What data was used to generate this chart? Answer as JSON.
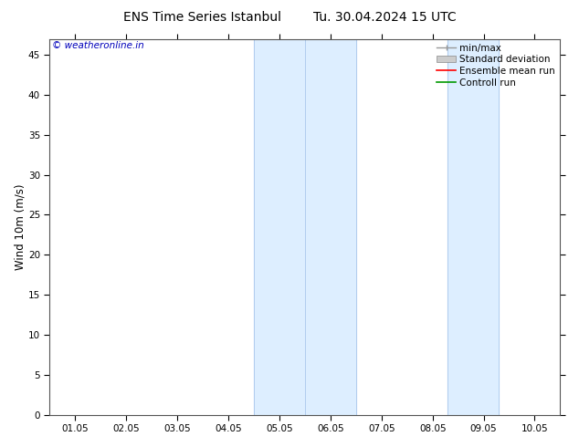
{
  "title": "ENS Time Series Istanbul        Tu. 30.04.2024 15 UTC",
  "ylabel": "Wind 10m (m/s)",
  "watermark": "© weatheronline.in",
  "watermark_color": "#0000bb",
  "ylim_min": 0,
  "ylim_max": 47,
  "yticks": [
    0,
    5,
    10,
    15,
    20,
    25,
    30,
    35,
    40,
    45
  ],
  "xtick_labels": [
    "01.05",
    "02.05",
    "03.05",
    "04.05",
    "05.05",
    "06.05",
    "07.05",
    "08.05",
    "09.05",
    "10.05"
  ],
  "shaded_bands": [
    {
      "xmin": 3.5,
      "xmax": 4.5,
      "color": "#ddeeff"
    },
    {
      "xmin": 4.5,
      "xmax": 5.5,
      "color": "#ddeeff"
    },
    {
      "xmin": 7.3,
      "xmax": 8.3,
      "color": "#ddeeff"
    }
  ],
  "band_edge_color": "#b0ccee",
  "legend_labels": [
    "min/max",
    "Standard deviation",
    "Ensemble mean run",
    "Controll run"
  ],
  "legend_colors": [
    "#999999",
    "#cccccc",
    "#ff0000",
    "#009900"
  ],
  "background_color": "#ffffff",
  "plot_bg_color": "#ffffff",
  "title_fontsize": 10,
  "tick_fontsize": 7.5,
  "ylabel_fontsize": 8.5,
  "watermark_fontsize": 7.5,
  "legend_fontsize": 7.5
}
